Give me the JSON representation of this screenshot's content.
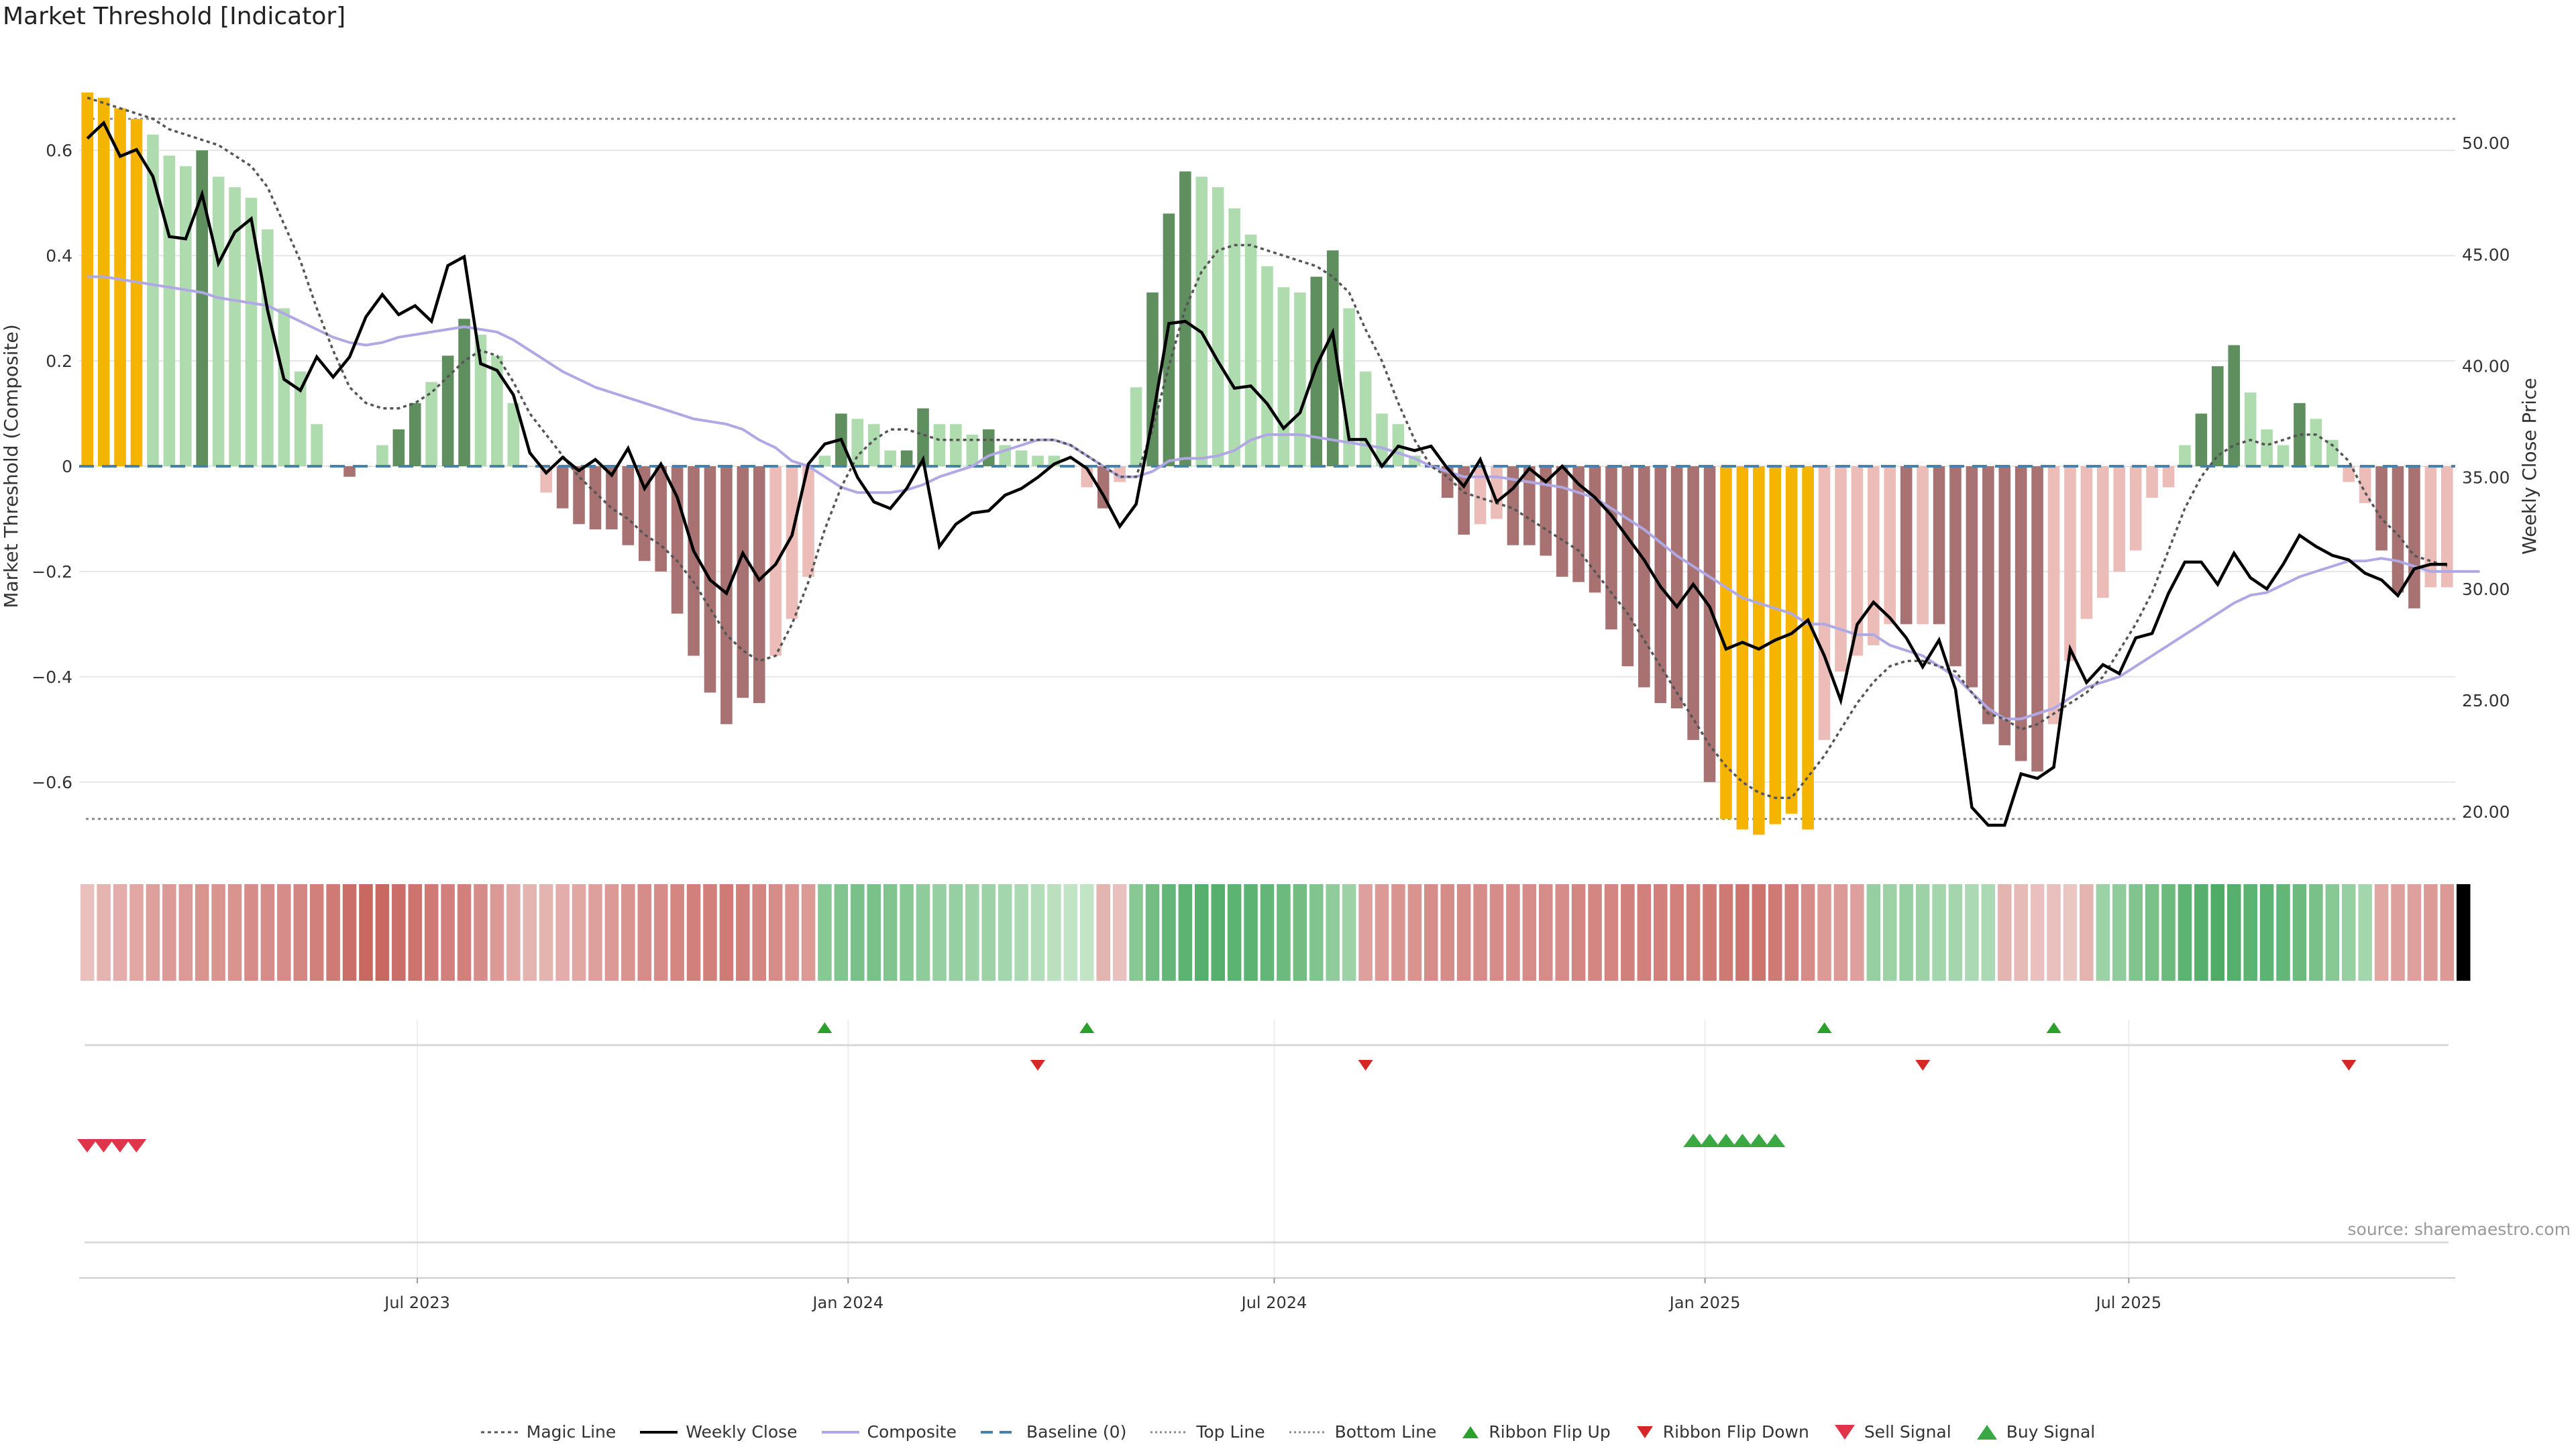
{
  "title": "Market Threshold [Indicator]",
  "source": "source: sharemaestro.com",
  "colors": {
    "bull_dark": "#5f8f5f",
    "bull_light": "#afdcaf",
    "bear_dark": "#a87272",
    "bear_light": "#ecbcb8",
    "extreme": "#f5b400",
    "price": "#000000",
    "composite": "#b0a8e4",
    "magic": "#555555",
    "baseline": "#4a7fa8",
    "flip_up": "#2ca02c",
    "flip_down": "#d62728",
    "sell": "#e0344a",
    "buy": "#3aa845"
  },
  "chart_data": {
    "type": "bar",
    "title": "Market Threshold [Indicator]",
    "ylabel": "Market Threshold (Composite)",
    "y2label": "Weekly Close Price",
    "ylim": [
      -0.72,
      0.72
    ],
    "y2lim": [
      18.5,
      52.5
    ],
    "yticks": [
      "0.6",
      "0.4",
      "0.2",
      "0",
      "−0.2",
      "−0.4",
      "−0.6"
    ],
    "yticks_values": [
      0.6,
      0.4,
      0.2,
      0,
      -0.2,
      -0.4,
      -0.6
    ],
    "y2ticks": [
      "50.00",
      "45.00",
      "40.00",
      "35.00",
      "30.00",
      "25.00",
      "20.00"
    ],
    "y2ticks_values": [
      50,
      45,
      40,
      35,
      30,
      25,
      20
    ],
    "x_start": "2023-02-10",
    "x_end": "2025-11-14",
    "xticks": [
      "Jul 2023",
      "Jan 2024",
      "Jul 2024",
      "Jan 2025",
      "Jul 2025"
    ],
    "xticks_dates": [
      "2023-07-01",
      "2024-01-01",
      "2024-07-01",
      "2025-01-01",
      "2025-07-01"
    ],
    "top_line": 0.66,
    "bottom_line": -0.67,
    "composite_bars": [
      0.71,
      0.7,
      0.68,
      0.66,
      0.63,
      0.59,
      0.57,
      0.6,
      0.55,
      0.53,
      0.51,
      0.45,
      0.3,
      0.18,
      0.08,
      0,
      -0.02,
      0,
      0.04,
      0.07,
      0.12,
      0.16,
      0.21,
      0.28,
      0.25,
      0.21,
      0.12,
      0,
      -0.05,
      -0.08,
      -0.11,
      -0.12,
      -0.12,
      -0.15,
      -0.18,
      -0.2,
      -0.28,
      -0.36,
      -0.43,
      -0.49,
      -0.44,
      -0.45,
      -0.36,
      -0.29,
      -0.21,
      0.02,
      0.1,
      0.09,
      0.08,
      0.03,
      0.03,
      0.11,
      0.08,
      0.08,
      0.06,
      0.07,
      0.04,
      0.03,
      0.02,
      0.02,
      0,
      -0.04,
      -0.08,
      -0.03,
      0.15,
      0.33,
      0.48,
      0.56,
      0.55,
      0.53,
      0.49,
      0.44,
      0.38,
      0.34,
      0.33,
      0.36,
      0.41,
      0.3,
      0.18,
      0.1,
      0.08,
      0.02,
      0,
      -0.06,
      -0.13,
      -0.11,
      -0.1,
      -0.15,
      -0.15,
      -0.17,
      -0.21,
      -0.22,
      -0.24,
      -0.31,
      -0.38,
      -0.42,
      -0.45,
      -0.46,
      -0.52,
      -0.6,
      -0.67,
      -0.69,
      -0.7,
      -0.68,
      -0.66,
      -0.69,
      -0.52,
      -0.39,
      -0.36,
      -0.34,
      -0.3,
      -0.3,
      -0.3,
      -0.3,
      -0.38,
      -0.42,
      -0.49,
      -0.53,
      -0.56,
      -0.58,
      -0.49,
      -0.37,
      -0.29,
      -0.25,
      -0.2,
      -0.16,
      -0.06,
      -0.04,
      0.04,
      0.1,
      0.19,
      0.23,
      0.14,
      0.07,
      0.04,
      0.12,
      0.09,
      0.05,
      -0.03,
      -0.07,
      -0.16,
      -0.24,
      -0.27,
      -0.23,
      -0.23
    ],
    "bar_style": [
      "E",
      "E",
      "E",
      "E",
      "L",
      "L",
      "L",
      "D",
      "L",
      "L",
      "L",
      "L",
      "L",
      "L",
      "L",
      "L",
      "D",
      "L",
      "L",
      "D",
      "D",
      "L",
      "D",
      "D",
      "L",
      "L",
      "L",
      "L",
      "L",
      "D",
      "D",
      "D",
      "D",
      "D",
      "D",
      "D",
      "D",
      "D",
      "D",
      "D",
      "D",
      "D",
      "L",
      "L",
      "L",
      "L",
      "D",
      "L",
      "L",
      "L",
      "D",
      "D",
      "L",
      "L",
      "L",
      "D",
      "L",
      "L",
      "L",
      "L",
      "L",
      "L",
      "D",
      "L",
      "L",
      "D",
      "D",
      "D",
      "L",
      "L",
      "L",
      "L",
      "L",
      "L",
      "L",
      "D",
      "D",
      "L",
      "L",
      "L",
      "L",
      "L",
      "L",
      "D",
      "D",
      "L",
      "L",
      "D",
      "D",
      "D",
      "D",
      "D",
      "D",
      "D",
      "D",
      "D",
      "D",
      "D",
      "D",
      "D",
      "E",
      "E",
      "E",
      "E",
      "E",
      "E",
      "L",
      "L",
      "L",
      "L",
      "L",
      "D",
      "L",
      "D",
      "D",
      "D",
      "D",
      "D",
      "D",
      "D",
      "L",
      "L",
      "L",
      "L",
      "L",
      "L",
      "L",
      "L",
      "L",
      "D",
      "D",
      "D",
      "L",
      "L",
      "L",
      "D",
      "L",
      "L",
      "L",
      "L",
      "D",
      "D",
      "D",
      "L",
      "L"
    ],
    "weekly_close": [
      50.2,
      50.9,
      49.4,
      49.7,
      48.5,
      45.8,
      45.7,
      47.7,
      44.6,
      46.0,
      46.6,
      42.5,
      39.4,
      38.9,
      40.4,
      39.5,
      40.4,
      42.2,
      43.2,
      42.3,
      42.7,
      42.0,
      44.5,
      44.9,
      40.1,
      39.8,
      38.7,
      36.1,
      35.2,
      35.9,
      35.3,
      35.8,
      35.1,
      36.3,
      34.5,
      35.6,
      34.1,
      31.7,
      30.4,
      29.8,
      31.6,
      30.4,
      31.1,
      32.4,
      35.6,
      36.5,
      36.7,
      35.0,
      33.9,
      33.6,
      34.5,
      35.8,
      31.9,
      32.9,
      33.4,
      33.5,
      34.2,
      34.5,
      35.0,
      35.6,
      35.9,
      35.4,
      34.2,
      32.8,
      33.8,
      37.6,
      41.9,
      42.0,
      41.5,
      40.2,
      39.0,
      39.1,
      38.3,
      37.2,
      37.9,
      40.0,
      41.5,
      36.7,
      36.7,
      35.5,
      36.4,
      36.2,
      36.4,
      35.4,
      34.6,
      35.8,
      33.9,
      34.5,
      35.4,
      34.8,
      35.5,
      34.7,
      34.1,
      33.3,
      32.3,
      31.3,
      30.1,
      29.2,
      30.2,
      29.2,
      27.3,
      27.6,
      27.3,
      27.7,
      28.0,
      28.6,
      27.0,
      25.0,
      28.4,
      29.4,
      28.7,
      27.8,
      26.5,
      27.7,
      25.5,
      20.2,
      19.4,
      19.4,
      21.7,
      21.5,
      22.0,
      27.3,
      25.8,
      26.6,
      26.2,
      27.8,
      28.0,
      29.8,
      31.2,
      31.2,
      30.2,
      31.6,
      30.5,
      30.0,
      31.1,
      32.4,
      31.9,
      31.5,
      31.3,
      30.7,
      30.4,
      29.7,
      30.9,
      31.1,
      31.1
    ],
    "composite_line": [
      0.36,
      0.36,
      0.355,
      0.35,
      0.345,
      0.34,
      0.335,
      0.33,
      0.32,
      0.315,
      0.31,
      0.305,
      0.29,
      0.275,
      0.26,
      0.245,
      0.235,
      0.23,
      0.235,
      0.245,
      0.25,
      0.255,
      0.26,
      0.265,
      0.26,
      0.255,
      0.24,
      0.22,
      0.2,
      0.18,
      0.165,
      0.15,
      0.14,
      0.13,
      0.12,
      0.11,
      0.1,
      0.09,
      0.085,
      0.08,
      0.07,
      0.05,
      0.035,
      0.01,
      0.0,
      -0.02,
      -0.04,
      -0.05,
      -0.05,
      -0.05,
      -0.045,
      -0.035,
      -0.02,
      -0.01,
      0.0,
      0.02,
      0.03,
      0.04,
      0.05,
      0.05,
      0.04,
      0.02,
      0.0,
      -0.02,
      -0.02,
      -0.01,
      0.01,
      0.015,
      0.015,
      0.02,
      0.03,
      0.05,
      0.06,
      0.06,
      0.06,
      0.055,
      0.05,
      0.045,
      0.04,
      0.035,
      0.025,
      0.015,
      0.0,
      -0.01,
      -0.02,
      -0.02,
      -0.02,
      -0.025,
      -0.03,
      -0.035,
      -0.04,
      -0.05,
      -0.06,
      -0.08,
      -0.1,
      -0.12,
      -0.145,
      -0.17,
      -0.19,
      -0.21,
      -0.23,
      -0.25,
      -0.26,
      -0.27,
      -0.28,
      -0.3,
      -0.3,
      -0.31,
      -0.32,
      -0.32,
      -0.34,
      -0.35,
      -0.36,
      -0.38,
      -0.4,
      -0.43,
      -0.46,
      -0.48,
      -0.48,
      -0.47,
      -0.46,
      -0.44,
      -0.42,
      -0.41,
      -0.4,
      -0.38,
      -0.36,
      -0.34,
      -0.32,
      -0.3,
      -0.28,
      -0.26,
      -0.245,
      -0.24,
      -0.225,
      -0.21,
      -0.2,
      -0.19,
      -0.18,
      -0.18,
      -0.175,
      -0.18,
      -0.19,
      -0.2,
      -0.2,
      -0.2,
      -0.2
    ],
    "magic_line": [
      0.7,
      0.69,
      0.68,
      0.67,
      0.66,
      0.64,
      0.63,
      0.62,
      0.61,
      0.59,
      0.57,
      0.53,
      0.46,
      0.39,
      0.3,
      0.22,
      0.15,
      0.12,
      0.11,
      0.11,
      0.12,
      0.14,
      0.17,
      0.2,
      0.22,
      0.21,
      0.16,
      0.1,
      0.06,
      0.02,
      -0.02,
      -0.05,
      -0.08,
      -0.1,
      -0.13,
      -0.15,
      -0.18,
      -0.22,
      -0.27,
      -0.32,
      -0.35,
      -0.37,
      -0.36,
      -0.3,
      -0.22,
      -0.12,
      -0.04,
      0.02,
      0.05,
      0.07,
      0.07,
      0.06,
      0.05,
      0.05,
      0.05,
      0.05,
      0.05,
      0.05,
      0.05,
      0.05,
      0.04,
      0.02,
      0.0,
      -0.02,
      -0.02,
      0.07,
      0.19,
      0.3,
      0.37,
      0.41,
      0.42,
      0.42,
      0.41,
      0.4,
      0.39,
      0.38,
      0.36,
      0.33,
      0.26,
      0.2,
      0.12,
      0.05,
      0.0,
      -0.02,
      -0.05,
      -0.06,
      -0.07,
      -0.08,
      -0.1,
      -0.12,
      -0.14,
      -0.16,
      -0.2,
      -0.24,
      -0.28,
      -0.33,
      -0.38,
      -0.43,
      -0.48,
      -0.53,
      -0.57,
      -0.6,
      -0.62,
      -0.63,
      -0.63,
      -0.59,
      -0.55,
      -0.5,
      -0.45,
      -0.41,
      -0.38,
      -0.37,
      -0.37,
      -0.38,
      -0.39,
      -0.43,
      -0.47,
      -0.48,
      -0.5,
      -0.49,
      -0.47,
      -0.45,
      -0.43,
      -0.4,
      -0.35,
      -0.3,
      -0.24,
      -0.16,
      -0.08,
      -0.02,
      0.02,
      0.04,
      0.05,
      0.04,
      0.05,
      0.06,
      0.06,
      0.04,
      0.01,
      -0.05,
      -0.1,
      -0.13,
      -0.17,
      -0.18,
      -0.19
    ],
    "ribbon_sign": [
      -1,
      -1,
      -1,
      -1,
      -1,
      -1,
      -1,
      -1,
      -1,
      -1,
      -1,
      -1,
      -1,
      -1,
      -1,
      -1,
      -1,
      -1,
      -1,
      -1,
      -1,
      -1,
      -1,
      -1,
      -1,
      -1,
      -1,
      -1,
      -1,
      -1,
      -1,
      -1,
      -1,
      -1,
      -1,
      -1,
      -1,
      -1,
      -1,
      -1,
      -1,
      -1,
      -1,
      -1,
      -1,
      1,
      1,
      1,
      1,
      1,
      1,
      1,
      1,
      1,
      1,
      1,
      1,
      1,
      1,
      1,
      1,
      1,
      -1,
      -1,
      1,
      1,
      1,
      1,
      1,
      1,
      1,
      1,
      1,
      1,
      1,
      1,
      1,
      1,
      -1,
      -1,
      -1,
      -1,
      -1,
      -1,
      -1,
      -1,
      -1,
      -1,
      -1,
      -1,
      -1,
      -1,
      -1,
      -1,
      -1,
      -1,
      -1,
      -1,
      -1,
      -1,
      -1,
      -1,
      -1,
      -1,
      -1,
      -1,
      -1,
      -1,
      -1,
      1,
      1,
      1,
      1,
      1,
      1,
      1,
      1,
      -1,
      -1,
      -1,
      -1,
      -1,
      -1,
      1,
      1,
      1,
      1,
      1,
      1,
      1,
      1,
      1,
      1,
      1,
      1,
      1,
      1,
      1,
      1,
      1,
      -1,
      -1,
      -1,
      -1,
      -1,
      -1
    ],
    "ribbon_strength": [
      0.2,
      0.3,
      0.35,
      0.4,
      0.45,
      0.5,
      0.5,
      0.55,
      0.55,
      0.55,
      0.6,
      0.6,
      0.6,
      0.65,
      0.7,
      0.75,
      0.85,
      0.9,
      0.9,
      0.85,
      0.8,
      0.75,
      0.7,
      0.7,
      0.6,
      0.5,
      0.4,
      0.3,
      0.3,
      0.35,
      0.4,
      0.45,
      0.5,
      0.55,
      0.6,
      0.6,
      0.65,
      0.7,
      0.7,
      0.75,
      0.7,
      0.65,
      0.6,
      0.55,
      0.5,
      0.55,
      0.6,
      0.65,
      0.65,
      0.6,
      0.55,
      0.5,
      0.45,
      0.45,
      0.4,
      0.4,
      0.35,
      0.3,
      0.25,
      0.2,
      0.15,
      0.15,
      0.3,
      0.2,
      0.55,
      0.7,
      0.8,
      0.85,
      0.9,
      0.9,
      0.85,
      0.85,
      0.8,
      0.75,
      0.7,
      0.6,
      0.5,
      0.4,
      0.45,
      0.5,
      0.55,
      0.55,
      0.6,
      0.6,
      0.6,
      0.6,
      0.6,
      0.6,
      0.6,
      0.6,
      0.6,
      0.65,
      0.65,
      0.65,
      0.7,
      0.7,
      0.7,
      0.7,
      0.7,
      0.75,
      0.75,
      0.8,
      0.8,
      0.75,
      0.7,
      0.6,
      0.5,
      0.5,
      0.45,
      0.45,
      0.4,
      0.45,
      0.4,
      0.35,
      0.35,
      0.3,
      0.3,
      0.3,
      0.25,
      0.2,
      0.2,
      0.15,
      0.3,
      0.4,
      0.5,
      0.6,
      0.65,
      0.75,
      0.85,
      0.9,
      0.95,
      0.9,
      0.85,
      0.85,
      0.8,
      0.75,
      0.65,
      0.55,
      0.45,
      0.35,
      0.4,
      0.45,
      0.45,
      0.5,
      0.5
    ],
    "ribbon_flip_up": [
      "2023-12-22",
      "2024-04-12",
      "2025-02-21",
      "2025-05-30"
    ],
    "ribbon_flip_down": [
      "2024-03-22",
      "2024-08-09",
      "2025-04-04",
      "2025-10-03"
    ],
    "sell_signals": [
      "2023-02-10",
      "2023-02-17",
      "2023-02-24",
      "2023-03-03"
    ],
    "buy_signals": [
      "2024-12-27",
      "2025-01-03",
      "2025-01-10",
      "2025-01-17",
      "2025-01-24",
      "2025-01-31"
    ],
    "legend": [
      "Magic Line",
      "Weekly Close",
      "Composite",
      "Baseline (0)",
      "Top Line",
      "Bottom Line",
      "Ribbon Flip Up",
      "Ribbon Flip Down",
      "Sell Signal",
      "Buy Signal"
    ],
    "grid": true,
    "legend_position": "bottom-center"
  }
}
